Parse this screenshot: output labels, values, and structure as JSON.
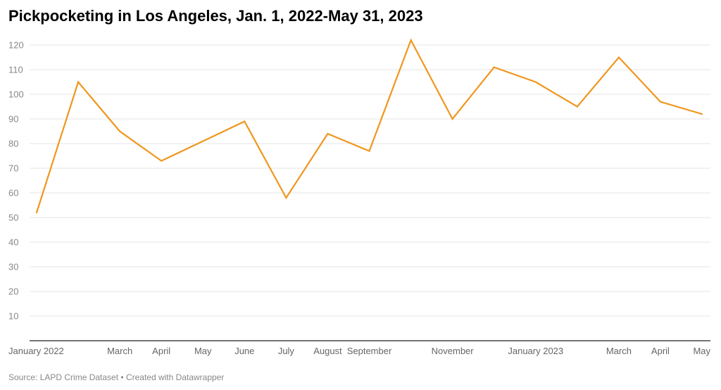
{
  "title": "Pickpocketing in Los Angeles, Jan. 1, 2022-May 31, 2023",
  "footer": {
    "source": "Source: LAPD Crime Dataset",
    "separator": "•",
    "credit": "Created with Datawrapper"
  },
  "colors": {
    "line": "#f0961e",
    "grid": "#e6e6e6",
    "baseline": "#222222"
  },
  "chart_data": {
    "type": "line",
    "title": "Pickpocketing in Los Angeles, Jan. 1, 2022-May 31, 2023",
    "xlabel": "",
    "ylabel": "",
    "ylim": [
      0,
      120
    ],
    "yticks": [
      10,
      20,
      30,
      40,
      50,
      60,
      70,
      80,
      90,
      100,
      110,
      120
    ],
    "grid": true,
    "legend": "none",
    "x": [
      "2022-01",
      "2022-02",
      "2022-03",
      "2022-04",
      "2022-05",
      "2022-06",
      "2022-07",
      "2022-08",
      "2022-09",
      "2022-10",
      "2022-11",
      "2022-12",
      "2023-01",
      "2023-02",
      "2023-03",
      "2023-04",
      "2023-05"
    ],
    "xtick_labels": [
      {
        "x": "2022-01",
        "label": "January 2022"
      },
      {
        "x": "2022-03",
        "label": "March"
      },
      {
        "x": "2022-04",
        "label": "April"
      },
      {
        "x": "2022-05",
        "label": "May"
      },
      {
        "x": "2022-06",
        "label": "June"
      },
      {
        "x": "2022-07",
        "label": "July"
      },
      {
        "x": "2022-08",
        "label": "August"
      },
      {
        "x": "2022-09",
        "label": "September"
      },
      {
        "x": "2022-11",
        "label": "November"
      },
      {
        "x": "2023-01",
        "label": "January 2023"
      },
      {
        "x": "2023-03",
        "label": "March"
      },
      {
        "x": "2023-04",
        "label": "April"
      },
      {
        "x": "2023-05",
        "label": "May"
      }
    ],
    "series": [
      {
        "values": [
          52,
          105,
          85,
          73,
          81,
          89,
          58,
          84,
          77,
          122,
          90,
          111,
          105,
          95,
          115,
          97,
          92
        ]
      }
    ]
  }
}
